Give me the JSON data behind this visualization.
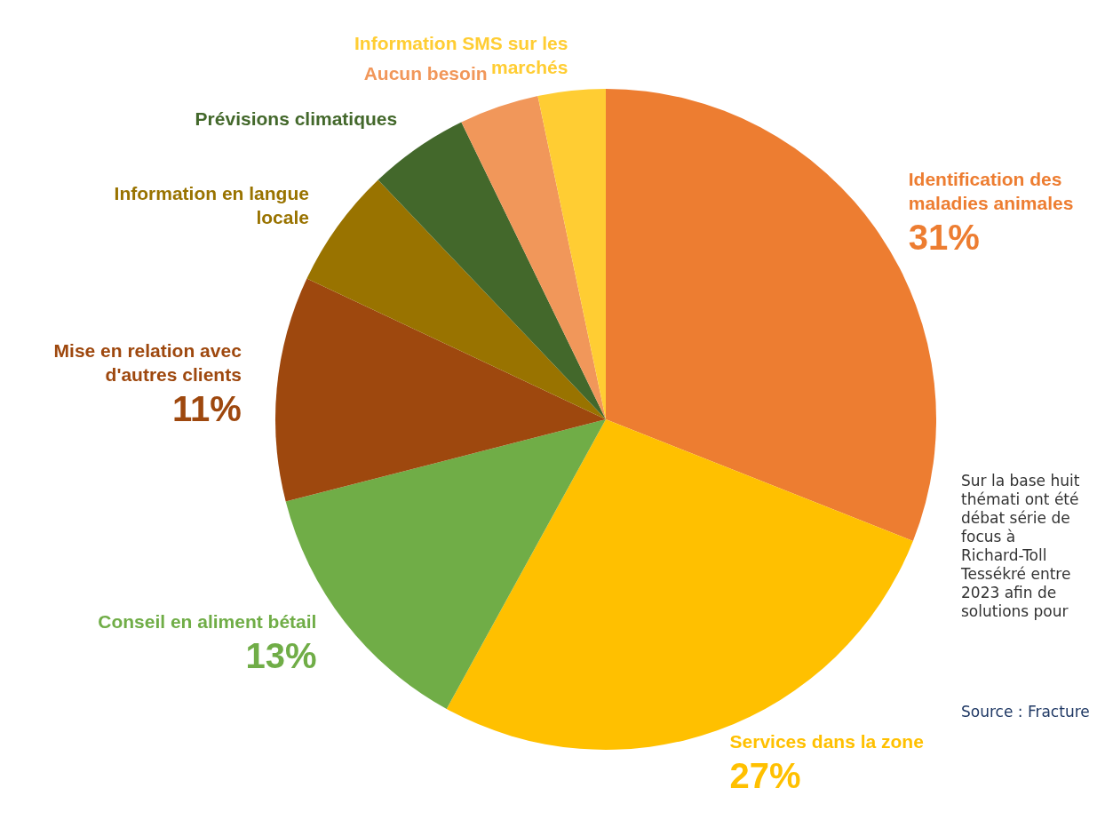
{
  "chart_data": {
    "type": "pie",
    "categories": [
      "Identification des maladies animales",
      "Services dans la zone",
      "Conseil en aliment bétail",
      "Mise en relation avec d'autres clients",
      "Information en langue locale",
      "Prévisions climatiques",
      "Aucun besoin",
      "Information SMS sur les marchés"
    ],
    "values": [
      31,
      27,
      13,
      11,
      5.9,
      4.9,
      3.9,
      3.3
    ],
    "colors": [
      "#ed7d31",
      "#ffc000",
      "#70ad47",
      "#9e480e",
      "#997300",
      "#43682b",
      "#f1975a",
      "#ffcd33"
    ],
    "value_labels": [
      "31%",
      "27%",
      "13%",
      "11%",
      null,
      null,
      null,
      null
    ],
    "legend": false,
    "annotations": [
      "Sur la base huit thémati ont été débat série de focus à Richard-Toll Tessékré entre 2023 afin de solutions pour",
      "Source : Fracture"
    ]
  }
}
